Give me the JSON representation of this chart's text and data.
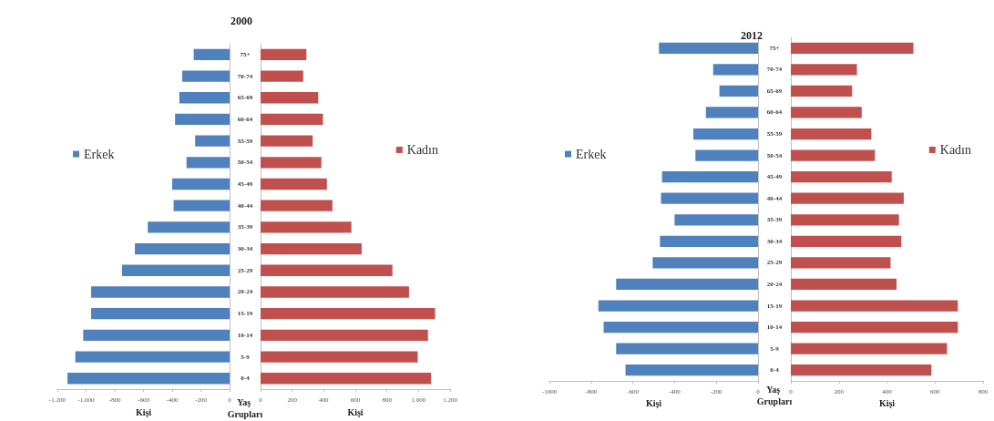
{
  "chart_data": [
    {
      "type": "bar",
      "orientation": "horizontal",
      "title": "2000",
      "xlabel": "Kişi",
      "ylabel": "Yaş Grupları",
      "legend": "left",
      "categories": [
        "75+",
        "70-74",
        "65-69",
        "60-64",
        "55-59",
        "50-54",
        "45-49",
        "40-44",
        "35-39",
        "30-34",
        "25-29",
        "20-24",
        "15-19",
        "10-14",
        "5-9",
        "0-4"
      ],
      "series": [
        {
          "name": "Erkek",
          "color": "#4f81bd",
          "values": [
            -250,
            -330,
            -350,
            -380,
            -240,
            -300,
            -400,
            -390,
            -570,
            -660,
            -750,
            -965,
            -965,
            -1020,
            -1075,
            -1130
          ]
        }
      ],
      "xlim": [
        -1200,
        0
      ],
      "xticks": [
        {
          "value": -1200,
          "label": "-1.200"
        },
        {
          "value": -1000,
          "label": "-1.000"
        },
        -800,
        -600,
        -400,
        -200,
        0
      ]
    },
    {
      "type": "bar",
      "orientation": "horizontal",
      "xlabel": "Kişi",
      "legend": "right",
      "tick_labels": "x",
      "categories": [
        "75+",
        "70-74",
        "65-69",
        "60-64",
        "55-59",
        "50-54",
        "45-49",
        "40-44",
        "35-39",
        "30-34",
        "25-29",
        "20-24",
        "15-19",
        "10-14",
        "5-9",
        "0-4"
      ],
      "series": [
        {
          "name": "Kadın",
          "color": "#c0504d",
          "values": [
            290,
            270,
            365,
            395,
            330,
            385,
            420,
            455,
            575,
            640,
            835,
            940,
            1105,
            1060,
            995,
            1080
          ]
        }
      ],
      "xlim": [
        0,
        1200
      ],
      "xticks": [
        0,
        200,
        400,
        600,
        800,
        {
          "value": 1000,
          "label": "1.000"
        },
        {
          "value": 1200,
          "label": "1.200"
        }
      ]
    },
    {
      "type": "bar",
      "orientation": "horizontal",
      "title": "2012",
      "xlabel": "Kişi",
      "ylabel": "Yaş Grupları",
      "legend": "left",
      "categories": [
        "75+",
        "70-74",
        "65-69",
        "60-64",
        "55-59",
        "50-54",
        "45-49",
        "40-44",
        "35-39",
        "30-34",
        "25-29",
        "20-24",
        "15-19",
        "10-14",
        "5-9",
        "0-4"
      ],
      "series": [
        {
          "name": "Erkek",
          "color": "#4f81bd",
          "values": [
            -475,
            -215,
            -185,
            -250,
            -310,
            -300,
            -460,
            -465,
            -400,
            -470,
            -505,
            -680,
            -765,
            -740,
            -680,
            -635
          ]
        }
      ],
      "xlim": [
        -1000,
        0
      ],
      "xticks": [
        -1000,
        -800,
        -600,
        -400,
        -200,
        0
      ]
    },
    {
      "type": "bar",
      "orientation": "horizontal",
      "xlabel": "Kişi",
      "legend": "right",
      "tick_labels": "x",
      "categories": [
        "75+",
        "70-74",
        "65-69",
        "60-64",
        "55-59",
        "50-54",
        "45-49",
        "40-44",
        "35-39",
        "30-34",
        "25-29",
        "20-24",
        "15-19",
        "10-14",
        "5-9",
        "0-4"
      ],
      "series": [
        {
          "name": "Kadın",
          "color": "#c0504d",
          "values": [
            510,
            275,
            255,
            295,
            335,
            350,
            420,
            470,
            450,
            460,
            415,
            440,
            695,
            695,
            650,
            585
          ]
        }
      ],
      "xlim": [
        0,
        800
      ],
      "xticks": [
        0,
        200,
        400,
        600,
        800
      ]
    }
  ]
}
